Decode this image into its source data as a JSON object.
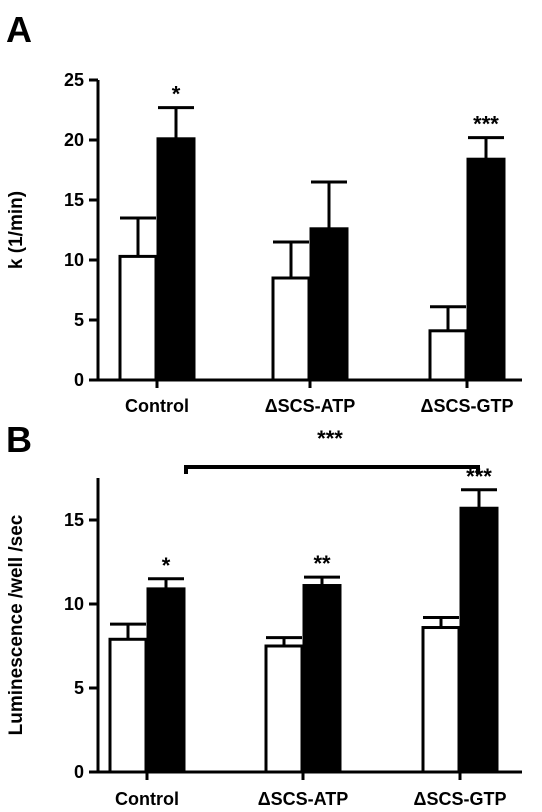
{
  "chart_data": [
    {
      "panel": "A",
      "type": "bar",
      "categories": [
        "Control",
        "ΔSCS-ATP",
        "ΔSCS-GTP"
      ],
      "series": [
        {
          "values": [
            10.3,
            8.5,
            4.1
          ],
          "errors": [
            3.2,
            3.0,
            2.0
          ],
          "fill": "#ffffff"
        },
        {
          "values": [
            20.1,
            12.6,
            18.4
          ],
          "errors": [
            2.6,
            3.9,
            1.8
          ],
          "fill": "#000000"
        }
      ],
      "significance": [
        "*",
        "",
        "***"
      ],
      "xlabel": "",
      "ylabel": "k (1/min)",
      "ylim": [
        0,
        25
      ],
      "yticks": [
        0,
        5,
        10,
        15,
        20,
        25
      ],
      "grid": false
    },
    {
      "panel": "B",
      "type": "bar",
      "categories": [
        "Control",
        "ΔSCS-ATP",
        "ΔSCS-GTP"
      ],
      "series": [
        {
          "values": [
            7.9,
            7.5,
            8.6
          ],
          "errors": [
            0.9,
            0.5,
            0.6
          ],
          "fill": "#ffffff"
        },
        {
          "values": [
            10.9,
            11.1,
            15.7
          ],
          "errors": [
            0.6,
            0.5,
            1.1
          ],
          "fill": "#000000"
        }
      ],
      "significance": [
        "*",
        "**",
        "***"
      ],
      "bracket_label": "***",
      "xlabel": "",
      "ylabel": "Luminescence /well /sec",
      "ylim": [
        0,
        17.5
      ],
      "yticks": [
        0,
        5,
        10,
        15
      ],
      "grid": false
    }
  ]
}
